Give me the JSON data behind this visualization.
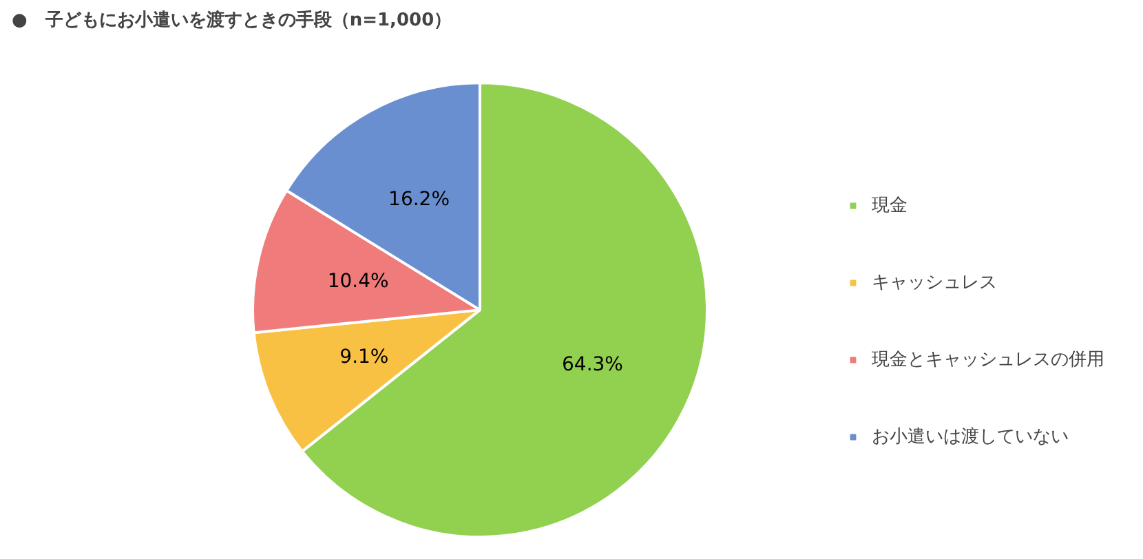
{
  "chart_data": {
    "type": "pie",
    "title": "●　子どもにお小遣いを渡すときの手段（n=1,000）",
    "categories": [
      "現金",
      "キャッシュレス",
      "現金とキャッシュレスの併用",
      "お小遣いは渡していない"
    ],
    "values": [
      64.3,
      9.1,
      10.4,
      16.2
    ],
    "colors": [
      "#92d050",
      "#f8c143",
      "#f07b7b",
      "#6a8fd1"
    ],
    "value_labels": [
      "64.3%",
      "9.1%",
      "10.4%",
      "16.2%"
    ],
    "legend": "right"
  }
}
